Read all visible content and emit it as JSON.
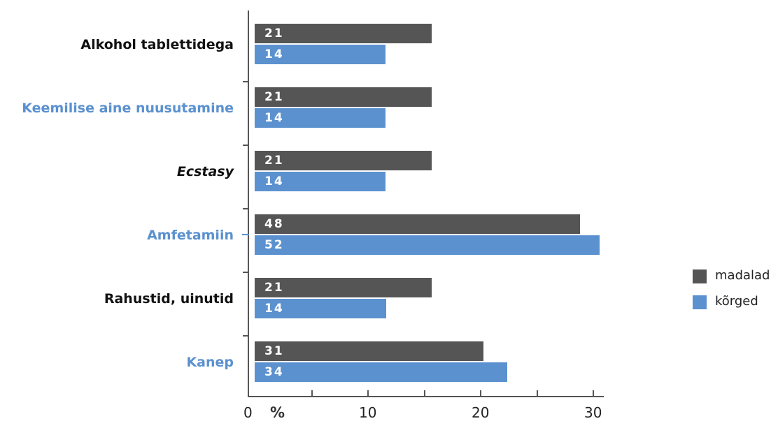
{
  "chart_data": {
    "type": "bar",
    "orientation": "horizontal",
    "categories": [
      "Alkohol tablettidega",
      "Keemilise aine nuusutamine",
      "Ecstasy",
      "Amfetamiin",
      "Rahustid, uinutid",
      "Kanep"
    ],
    "category_colors": [
      "#111111",
      "#5b91cf",
      "#111111",
      "#5b91cf",
      "#111111",
      "#5b91cf"
    ],
    "category_italic": [
      false,
      false,
      true,
      false,
      false,
      false
    ],
    "series": [
      {
        "name": "madalad",
        "color": "#555555",
        "values": [
          15.7,
          15.7,
          15.7,
          28.9,
          15.7,
          20.3
        ],
        "value_labels": [
          "21",
          "21",
          "21",
          "48",
          "21",
          "31"
        ]
      },
      {
        "name": "kõrged",
        "color": "#5b91cf",
        "values": [
          11.6,
          11.6,
          11.6,
          30.6,
          11.7,
          22.4
        ],
        "value_labels": [
          "14",
          "14",
          "14",
          "52",
          "14",
          "34"
        ]
      }
    ],
    "x_ticks": [
      "0",
      "10",
      "20",
      "30"
    ],
    "x_tick_values": [
      0,
      10,
      20,
      30
    ],
    "x_unit": "%",
    "xlim": [
      0,
      31
    ],
    "legend_position": "right"
  }
}
